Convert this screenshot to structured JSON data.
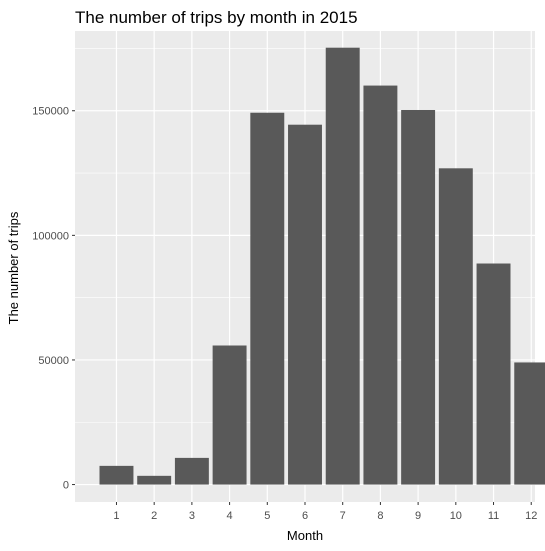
{
  "chart_data": {
    "type": "bar",
    "title": "The number of trips by month in 2015",
    "xlabel": "Month",
    "ylabel": "The number of trips",
    "categories": [
      "1",
      "2",
      "3",
      "4",
      "5",
      "6",
      "7",
      "8",
      "9",
      "10",
      "11",
      "12"
    ],
    "values": [
      7500,
      3500,
      10700,
      55800,
      149200,
      144400,
      175300,
      160100,
      150300,
      126900,
      88700,
      49000
    ],
    "yticks": [
      0,
      50000,
      100000,
      150000
    ],
    "ytick_labels": [
      "0",
      "50000",
      "100000",
      "150000"
    ],
    "ylim": [
      -7000,
      182000
    ],
    "grid": true,
    "colors": {
      "panel": "#ebebeb",
      "grid": "#ffffff",
      "bar": "#595959"
    }
  }
}
